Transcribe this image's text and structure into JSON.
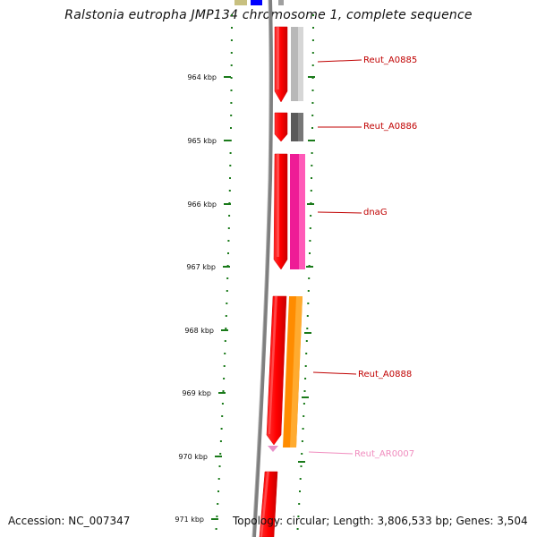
{
  "title": "Ralstonia eutropha JMP134 chromosome 1, complete sequence",
  "footer": {
    "accession": "Accession: NC_007347",
    "topology": "Topology: circular; Length: 3,806,533 bp; Genes: 3,504"
  },
  "ticks": [
    "964 kbp",
    "965 kbp",
    "966 kbp",
    "967 kbp",
    "968 kbp",
    "969 kbp",
    "970 kbp",
    "971 kbp"
  ],
  "genes": [
    {
      "label": "Reut_A0885",
      "color": "#c00000",
      "feature_color": "#b8b8b8"
    },
    {
      "label": "Reut_A0886",
      "color": "#c00000",
      "feature_color": "#5a5a5a"
    },
    {
      "label": "dnaG",
      "color": "#c00000",
      "feature_color": "#ee1c96"
    },
    {
      "label": "Reut_A0888",
      "color": "#c00000",
      "feature_color": "#ff8c00"
    },
    {
      "label": "Reut_AR0007",
      "color": "#f08cbe",
      "feature_color": "#f08cbe"
    }
  ],
  "colors": {
    "cds": "#ff0000",
    "backbone": "#808080",
    "tick_green": "#1a7a1a",
    "top_olive": "#c8c080",
    "top_blue": "#0000ff"
  }
}
